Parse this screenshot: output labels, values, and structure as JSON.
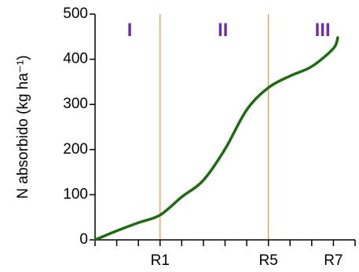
{
  "chart_data": {
    "type": "line",
    "ylabel": "N absorbido (kg ha⁻¹)",
    "x": [
      0,
      1,
      2,
      3,
      4,
      5,
      6,
      7,
      8,
      9,
      10,
      11,
      11.2
    ],
    "values": [
      0,
      20,
      38,
      55,
      95,
      132,
      201,
      288,
      337,
      363,
      384,
      424,
      448
    ],
    "color": "#1e6b12",
    "xlim": [
      0,
      12
    ],
    "xticks": [
      {
        "value": 0,
        "label": null
      },
      {
        "value": 1,
        "label": null
      },
      {
        "value": 2,
        "label": null
      },
      {
        "value": 3,
        "label": "R1"
      },
      {
        "value": 4,
        "label": null
      },
      {
        "value": 5,
        "label": null
      },
      {
        "value": 6,
        "label": null
      },
      {
        "value": 7,
        "label": null
      },
      {
        "value": 8,
        "label": "R5"
      },
      {
        "value": 9,
        "label": null
      },
      {
        "value": 10,
        "label": null
      },
      {
        "value": 11,
        "label": "R7"
      },
      {
        "value": 12,
        "label": null
      }
    ],
    "ylim": [
      0,
      500
    ],
    "yticks": [
      0,
      100,
      200,
      300,
      400,
      500
    ],
    "vlines": [
      3,
      8
    ],
    "vline_color": "#e8923a",
    "annotations": [
      {
        "text": "I",
        "x": 1.6,
        "y": 462
      },
      {
        "text": "II",
        "x": 5.9,
        "y": 462
      },
      {
        "text": "III",
        "x": 10.5,
        "y": 462
      }
    ],
    "annotation_color": "#7030a0",
    "grid": false
  }
}
